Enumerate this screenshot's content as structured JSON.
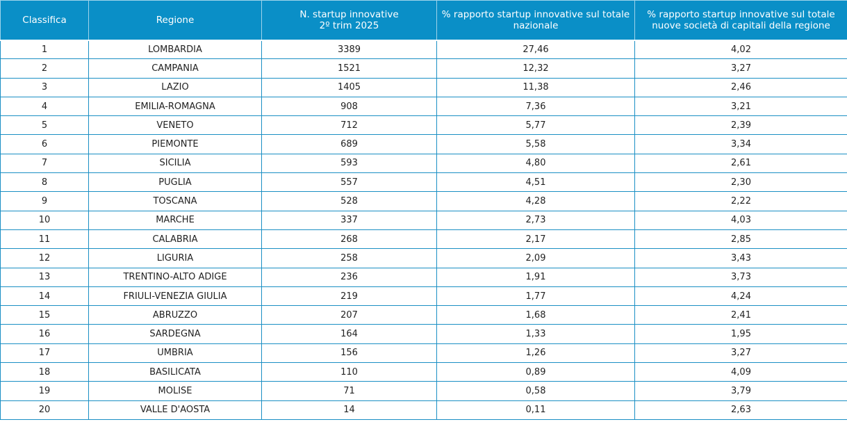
{
  "table": {
    "headers": {
      "rank": "Classifica",
      "region": "Regione",
      "count_line1": "N. startup innovative",
      "count_line2": "2º trim 2025",
      "pct_national": "% rapporto startup innovative sul totale nazionale",
      "pct_regional": "% rapporto startup innovative sul totale nuove società di capitali della regione"
    },
    "rows": [
      {
        "rank": "1",
        "region": "LOMBARDIA",
        "count": "3389",
        "pct_national": "27,46",
        "pct_regional": "4,02"
      },
      {
        "rank": "2",
        "region": "CAMPANIA",
        "count": "1521",
        "pct_national": "12,32",
        "pct_regional": "3,27"
      },
      {
        "rank": "3",
        "region": "LAZIO",
        "count": "1405",
        "pct_national": "11,38",
        "pct_regional": "2,46"
      },
      {
        "rank": "4",
        "region": "EMILIA-ROMAGNA",
        "count": "908",
        "pct_national": "7,36",
        "pct_regional": "3,21"
      },
      {
        "rank": "5",
        "region": "VENETO",
        "count": "712",
        "pct_national": "5,77",
        "pct_regional": "2,39"
      },
      {
        "rank": "6",
        "region": "PIEMONTE",
        "count": "689",
        "pct_national": "5,58",
        "pct_regional": "3,34"
      },
      {
        "rank": "7",
        "region": "SICILIA",
        "count": "593",
        "pct_national": "4,80",
        "pct_regional": "2,61"
      },
      {
        "rank": "8",
        "region": "PUGLIA",
        "count": "557",
        "pct_national": "4,51",
        "pct_regional": "2,30"
      },
      {
        "rank": "9",
        "region": "TOSCANA",
        "count": "528",
        "pct_national": "4,28",
        "pct_regional": "2,22"
      },
      {
        "rank": "10",
        "region": "MARCHE",
        "count": "337",
        "pct_national": "2,73",
        "pct_regional": "4,03"
      },
      {
        "rank": "11",
        "region": "CALABRIA",
        "count": "268",
        "pct_national": "2,17",
        "pct_regional": "2,85"
      },
      {
        "rank": "12",
        "region": "LIGURIA",
        "count": "258",
        "pct_national": "2,09",
        "pct_regional": "3,43"
      },
      {
        "rank": "13",
        "region": "TRENTINO-ALTO ADIGE",
        "count": "236",
        "pct_national": "1,91",
        "pct_regional": "3,73"
      },
      {
        "rank": "14",
        "region": "FRIULI-VENEZIA GIULIA",
        "count": "219",
        "pct_national": "1,77",
        "pct_regional": "4,24"
      },
      {
        "rank": "15",
        "region": "ABRUZZO",
        "count": "207",
        "pct_national": "1,68",
        "pct_regional": "2,41"
      },
      {
        "rank": "16",
        "region": "SARDEGNA",
        "count": "164",
        "pct_national": "1,33",
        "pct_regional": "1,95"
      },
      {
        "rank": "17",
        "region": "UMBRIA",
        "count": "156",
        "pct_national": "1,26",
        "pct_regional": "3,27"
      },
      {
        "rank": "18",
        "region": "BASILICATA",
        "count": "110",
        "pct_national": "0,89",
        "pct_regional": "4,09"
      },
      {
        "rank": "19",
        "region": "MOLISE",
        "count": "71",
        "pct_national": "0,58",
        "pct_regional": "3,79"
      },
      {
        "rank": "20",
        "region": "VALLE D'AOSTA",
        "count": "14",
        "pct_national": "0,11",
        "pct_regional": "2,63"
      }
    ]
  },
  "colors": {
    "header_background": "#0a8fc7",
    "header_text": "#ffffff",
    "cell_border": "#1a8fc4",
    "cell_text": "#222222"
  }
}
